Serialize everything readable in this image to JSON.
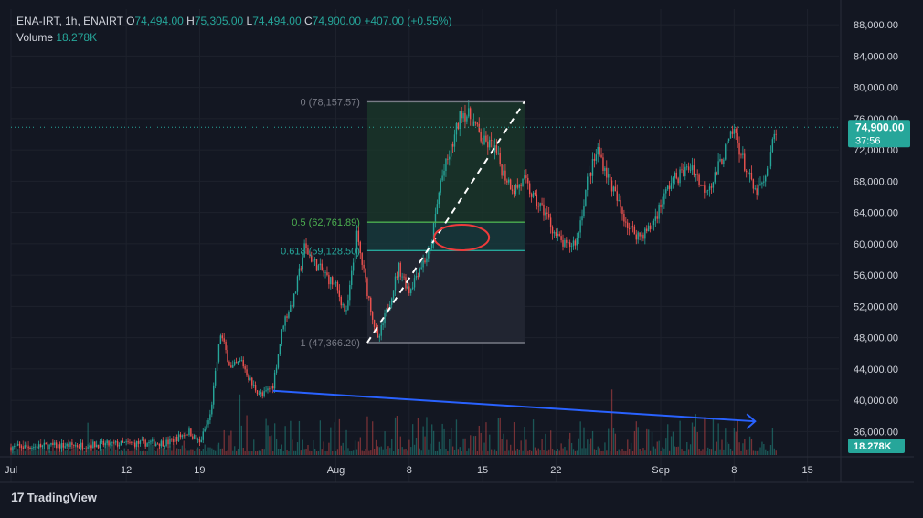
{
  "header": {
    "symbol": "ENA-IRT, 1h, ENAIRT",
    "o_label": "O",
    "o_value": "74,494.00",
    "h_label": "H",
    "h_value": "75,305.00",
    "l_label": "L",
    "l_value": "74,494.00",
    "c_label": "C",
    "c_value": "74,900.00",
    "change": "+407.00 (+0.55%)",
    "volume_label": "Volume",
    "volume_value": "18.278K"
  },
  "price_tag": {
    "price": "74,900.00",
    "countdown": "37:56",
    "color": "#26a69a"
  },
  "volume_tag": {
    "value": "18.278K",
    "color": "#26a69a"
  },
  "branding": {
    "logo": "17",
    "name": "TradingView"
  },
  "colors": {
    "background": "#131722",
    "up": "#26a69a",
    "down": "#ef5350",
    "grid": "#1e222d",
    "axis_text": "#d1d4dc",
    "trendline_volume": "#2962ff",
    "fib_upper_zone": "#1b3a2b",
    "fib_golden_zone": "#17363a",
    "fib_lower_zone": "#222633",
    "annotation_circle": "#ef3b3b"
  },
  "chart_data": {
    "type": "candlestick",
    "symbol": "ENA-IRT",
    "timeframe": "1h",
    "y_axis": {
      "range": [
        33000,
        90000
      ],
      "ticks": [
        88000,
        84000,
        80000,
        76000,
        72000,
        68000,
        64000,
        60000,
        56000,
        52000,
        48000,
        44000,
        40000,
        36000
      ],
      "tick_labels": [
        "88,000.00",
        "84,000.00",
        "80,000.00",
        "76,000.00",
        "72,000.00",
        "68,000.00",
        "64,000.00",
        "60,000.00",
        "56,000.00",
        "52,000.00",
        "48,000.00",
        "44,000.00",
        "40,000.00",
        "36,000.00"
      ]
    },
    "x_axis": {
      "range": [
        "2024-07-01",
        "2024-09-18"
      ],
      "ticks": [
        "2024-07-01",
        "2024-07-12",
        "2024-07-19",
        "2024-08-01",
        "2024-08-08",
        "2024-08-15",
        "2024-08-22",
        "2024-09-01",
        "2024-09-08",
        "2024-09-15"
      ],
      "tick_labels": [
        "Jul",
        "12",
        "19",
        "Aug",
        "8",
        "15",
        "22",
        "Sep",
        "8",
        "15"
      ]
    },
    "price_path": [
      [
        "2024-07-01",
        34000
      ],
      [
        "2024-07-16",
        34600
      ],
      [
        "2024-07-18",
        36000
      ],
      [
        "2024-07-19",
        34500
      ],
      [
        "2024-07-20",
        38000
      ],
      [
        "2024-07-21",
        48500
      ],
      [
        "2024-07-22",
        44000
      ],
      [
        "2024-07-23",
        45000
      ],
      [
        "2024-07-24",
        42000
      ],
      [
        "2024-07-25",
        40500
      ],
      [
        "2024-07-26",
        42000
      ],
      [
        "2024-07-27",
        50000
      ],
      [
        "2024-07-28",
        53000
      ],
      [
        "2024-07-29",
        59500
      ],
      [
        "2024-07-30",
        57500
      ],
      [
        "2024-07-31",
        56000
      ],
      [
        "2024-08-01",
        54500
      ],
      [
        "2024-08-02",
        51000
      ],
      [
        "2024-08-03",
        61000
      ],
      [
        "2024-08-04",
        54000
      ],
      [
        "2024-08-05",
        47500
      ],
      [
        "2024-08-06",
        52000
      ],
      [
        "2024-08-07",
        57000
      ],
      [
        "2024-08-08",
        54000
      ],
      [
        "2024-08-09",
        57000
      ],
      [
        "2024-08-10",
        59000
      ],
      [
        "2024-08-11",
        68000
      ],
      [
        "2024-08-12",
        72000
      ],
      [
        "2024-08-13",
        77000
      ],
      [
        "2024-08-14",
        76000
      ],
      [
        "2024-08-15",
        73000
      ],
      [
        "2024-08-16",
        72500
      ],
      [
        "2024-08-17",
        69000
      ],
      [
        "2024-08-18",
        67000
      ],
      [
        "2024-08-19",
        68000
      ],
      [
        "2024-08-20",
        65500
      ],
      [
        "2024-08-21",
        64000
      ],
      [
        "2024-08-22",
        61000
      ],
      [
        "2024-08-23",
        59500
      ],
      [
        "2024-08-24",
        60500
      ],
      [
        "2024-08-25",
        68000
      ],
      [
        "2024-08-26",
        72000
      ],
      [
        "2024-08-27",
        68500
      ],
      [
        "2024-08-28",
        65000
      ],
      [
        "2024-08-29",
        62000
      ],
      [
        "2024-08-30",
        61000
      ],
      [
        "2024-08-31",
        62000
      ],
      [
        "2024-09-01",
        65000
      ],
      [
        "2024-09-02",
        68000
      ],
      [
        "2024-09-03",
        69000
      ],
      [
        "2024-09-04",
        70000
      ],
      [
        "2024-09-05",
        67000
      ],
      [
        "2024-09-06",
        68000
      ],
      [
        "2024-09-07",
        71500
      ],
      [
        "2024-09-08",
        74500
      ],
      [
        "2024-09-09",
        70000
      ],
      [
        "2024-09-10",
        66500
      ],
      [
        "2024-09-11",
        68000
      ],
      [
        "2024-09-12",
        74900
      ]
    ],
    "last_close": 74900,
    "current_volume": "18.278K",
    "fibonacci": {
      "from": [
        "2024-08-04",
        47366.2
      ],
      "to": [
        "2024-08-19",
        78157.57
      ],
      "levels": [
        {
          "ratio": "0",
          "price": 78157.57,
          "label": "0 (78,157.57)",
          "color": "#787b86"
        },
        {
          "ratio": "0.5",
          "price": 62761.89,
          "label": "0.5 (62,761.89)",
          "color": "#4caf50"
        },
        {
          "ratio": "0.618",
          "price": 59128.5,
          "label": "0.618 (59,128.50)",
          "color": "#26a69a"
        },
        {
          "ratio": "1",
          "price": 47366.2,
          "label": "1 (47,366.20)",
          "color": "#787b86"
        }
      ]
    },
    "annotations": [
      {
        "type": "dashed_line",
        "from": [
          "2024-08-04",
          47366.2
        ],
        "to": [
          "2024-08-19",
          78157.57
        ],
        "color": "#ffffff"
      },
      {
        "type": "ellipse",
        "center": [
          "2024-08-13",
          60800
        ],
        "color": "#ef3b3b"
      },
      {
        "type": "arrow",
        "from": [
          "2024-07-26",
          41200
        ],
        "to": [
          "2024-09-10",
          37300
        ],
        "color": "#2962ff"
      }
    ]
  }
}
